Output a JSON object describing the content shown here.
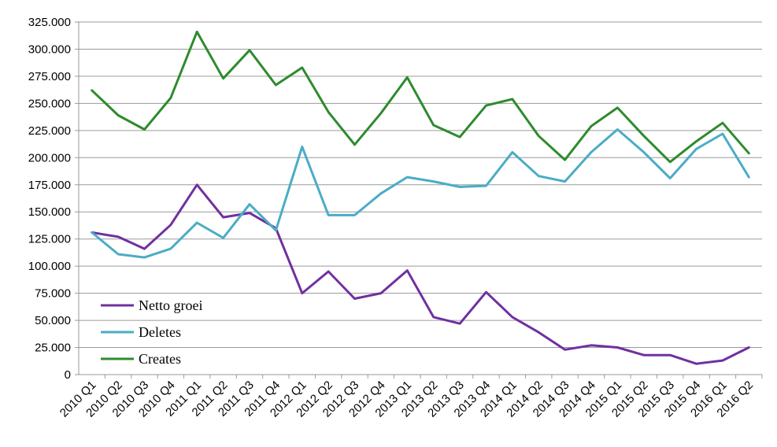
{
  "chart_data": {
    "type": "line",
    "title": "",
    "xlabel": "",
    "ylabel": "",
    "ylim": [
      0,
      325000
    ],
    "y_ticks": [
      "0",
      "25.000",
      "50.000",
      "75.000",
      "100.000",
      "125.000",
      "150.000",
      "175.000",
      "200.000",
      "225.000",
      "250.000",
      "275.000",
      "300.000",
      "325.000"
    ],
    "grid": true,
    "legend_position": "bottom-left",
    "categories": [
      "2010 Q1",
      "2010 Q2",
      "2010 Q3",
      "2010 Q4",
      "2011 Q1",
      "2011 Q2",
      "2011 Q3",
      "2011 Q4",
      "2012 Q1",
      "2012 Q2",
      "2012 Q3",
      "2012 Q4",
      "2013 Q1",
      "2013 Q2",
      "2013 Q3",
      "2013 Q4",
      "2014 Q1",
      "2014 Q2",
      "2014 Q3",
      "2014 Q4",
      "2015 Q1",
      "2015 Q2",
      "2015 Q3",
      "2015 Q4",
      "2016 Q1",
      "2016 Q2"
    ],
    "series": [
      {
        "name": "Netto groei",
        "color": "#7030a0",
        "values": [
          131000,
          127000,
          116000,
          138000,
          175000,
          145000,
          149000,
          135000,
          75000,
          95000,
          70000,
          75000,
          96000,
          53000,
          47000,
          76000,
          53000,
          39000,
          23000,
          27000,
          25000,
          18000,
          18000,
          10000,
          13000,
          25000
        ]
      },
      {
        "name": "Deletes",
        "color": "#4bacc6",
        "values": [
          131000,
          111000,
          108000,
          116000,
          140000,
          126000,
          157000,
          133000,
          210000,
          147000,
          147000,
          167000,
          182000,
          178000,
          173000,
          174000,
          205000,
          183000,
          178000,
          205000,
          226000,
          205000,
          181000,
          208000,
          222000,
          182000
        ]
      },
      {
        "name": "Creates",
        "color": "#2e8b2e",
        "values": [
          262000,
          239000,
          226000,
          255000,
          316000,
          273000,
          299000,
          267000,
          283000,
          242000,
          212000,
          241000,
          274000,
          230000,
          219000,
          248000,
          254000,
          220000,
          198000,
          229000,
          246000,
          220000,
          196000,
          215000,
          232000,
          204000
        ]
      }
    ]
  }
}
